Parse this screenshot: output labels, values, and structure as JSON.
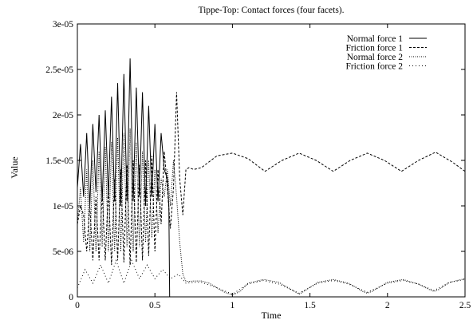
{
  "chart_data": {
    "type": "line",
    "title": "Tippe-Top: Contact forces (four facets).",
    "xlabel": "Time",
    "ylabel": "Value",
    "xlim": [
      0,
      2.5
    ],
    "ylim": [
      0,
      3e-05
    ],
    "x_ticks": [
      0,
      0.5,
      1,
      1.5,
      2,
      2.5
    ],
    "x_tick_labels": [
      "0",
      "0.5",
      "1",
      "1.5",
      "2",
      "2.5"
    ],
    "y_ticks": [
      0,
      5e-06,
      1e-05,
      1.5e-05,
      2e-05,
      2.5e-05,
      3e-05
    ],
    "y_tick_labels": [
      "0",
      "5e-06",
      "1e-05",
      "1.5e-05",
      "2e-05",
      "2.5e-05",
      "3e-05"
    ],
    "grid": false,
    "legend_position": "top-right",
    "series": [
      {
        "name": "Normal force 1",
        "style": "solid",
        "x": [
          0.0,
          0.02,
          0.04,
          0.06,
          0.08,
          0.1,
          0.12,
          0.14,
          0.16,
          0.18,
          0.2,
          0.22,
          0.24,
          0.26,
          0.28,
          0.3,
          0.32,
          0.34,
          0.36,
          0.38,
          0.4,
          0.42,
          0.44,
          0.46,
          0.48,
          0.5,
          0.52,
          0.54,
          0.56,
          0.58,
          0.59,
          0.595,
          0.6,
          2.5
        ],
        "values": [
          1.2e-05,
          1.68e-05,
          1.1e-05,
          1.8e-05,
          1e-05,
          1.9e-05,
          1.15e-05,
          2e-05,
          1.05e-05,
          2.05e-05,
          1.1e-05,
          2.2e-05,
          1.05e-05,
          2.35e-05,
          1e-05,
          2.45e-05,
          1.05e-05,
          2.62e-05,
          1.05e-05,
          2.3e-05,
          1.1e-05,
          2.25e-05,
          1e-05,
          2.1e-05,
          1.1e-05,
          1.9e-05,
          1.05e-05,
          1.8e-05,
          1.4e-05,
          1.3e-05,
          1e-05,
          0,
          0,
          0
        ]
      },
      {
        "name": "Friction force 1",
        "style": "dashed",
        "x": [
          0.0,
          0.02,
          0.04,
          0.06,
          0.08,
          0.1,
          0.12,
          0.14,
          0.16,
          0.18,
          0.2,
          0.22,
          0.24,
          0.26,
          0.28,
          0.3,
          0.32,
          0.34,
          0.36,
          0.38,
          0.4,
          0.42,
          0.44,
          0.46,
          0.48,
          0.5,
          0.52,
          0.54,
          0.56,
          0.58,
          0.6,
          0.62,
          0.64,
          0.66,
          0.68,
          0.7,
          0.72,
          0.75,
          0.8,
          0.9,
          1.0,
          1.1,
          1.21,
          1.32,
          1.43,
          1.54,
          1.65,
          1.76,
          1.87,
          1.98,
          2.09,
          2.2,
          2.31,
          2.42,
          2.5
        ],
        "values": [
          8e-06,
          1e-05,
          9e-06,
          5e-06,
          1e-05,
          4e-06,
          1.1e-05,
          4e-06,
          1.15e-05,
          4e-06,
          1.2e-05,
          3.5e-06,
          1.3e-05,
          4e-06,
          1.4e-05,
          3.8e-06,
          1.45e-05,
          3.5e-06,
          1.5e-05,
          3.8e-06,
          1.45e-05,
          4e-06,
          1.5e-05,
          4.5e-06,
          1.55e-05,
          5e-06,
          1.4e-05,
          8e-06,
          1.6e-05,
          1.2e-05,
          7.5e-06,
          1.2e-05,
          2.25e-05,
          1.3e-05,
          9e-06,
          1.4e-05,
          1.42e-05,
          1.4e-05,
          1.42e-05,
          1.55e-05,
          1.58e-05,
          1.52e-05,
          1.38e-05,
          1.5e-05,
          1.58e-05,
          1.5e-05,
          1.38e-05,
          1.5e-05,
          1.58e-05,
          1.5e-05,
          1.38e-05,
          1.5e-05,
          1.59e-05,
          1.48e-05,
          1.38e-05
        ]
      },
      {
        "name": "Normal force 2",
        "style": "dotted",
        "x": [
          0.0,
          0.02,
          0.04,
          0.06,
          0.08,
          0.1,
          0.12,
          0.14,
          0.16,
          0.18,
          0.2,
          0.22,
          0.24,
          0.26,
          0.28,
          0.3,
          0.32,
          0.34,
          0.36,
          0.38,
          0.4,
          0.42,
          0.44,
          0.46,
          0.48,
          0.5,
          0.52,
          0.54,
          0.56,
          0.58,
          0.6,
          0.62,
          0.64,
          0.66,
          0.68,
          0.7,
          0.72,
          0.75,
          0.8,
          0.85,
          0.9,
          0.95,
          1.0,
          1.05,
          1.1,
          1.2,
          1.3,
          1.4,
          1.43,
          1.46,
          1.55,
          1.65,
          1.75,
          1.84,
          1.87,
          1.9,
          2.0,
          2.1,
          2.2,
          2.27,
          2.3,
          2.33,
          2.4,
          2.5
        ],
        "values": [
          8e-06,
          1.2e-05,
          6e-06,
          1.4e-05,
          5e-06,
          1.5e-05,
          5e-06,
          1.6e-05,
          5.5e-06,
          1.65e-05,
          5e-06,
          1.7e-05,
          5e-06,
          1.75e-05,
          5e-06,
          1.8e-05,
          5.5e-06,
          1.85e-05,
          5e-06,
          1.7e-05,
          5.5e-06,
          1.6e-05,
          6e-06,
          1.5e-05,
          6.5e-06,
          1.4e-05,
          7e-06,
          1.3e-05,
          1.1e-05,
          1.4e-05,
          1e-05,
          1.5e-05,
          1.1e-05,
          6e-06,
          2.5e-06,
          1.7e-06,
          1.7e-06,
          1.75e-06,
          1.75e-06,
          1.5e-06,
          1e-06,
          5e-07,
          2e-07,
          6e-07,
          1.5e-06,
          1.9e-06,
          1.6e-06,
          6e-07,
          3e-07,
          6e-07,
          1.6e-06,
          1.9e-06,
          1.5e-06,
          6e-07,
          4e-07,
          6e-07,
          1.6e-06,
          1.9e-06,
          1.4e-06,
          8e-07,
          6e-07,
          8e-07,
          1.6e-06,
          2e-06
        ]
      },
      {
        "name": "Friction force 2",
        "style": "dotted-sparse",
        "x": [
          0.0,
          0.05,
          0.1,
          0.15,
          0.2,
          0.25,
          0.3,
          0.35,
          0.4,
          0.45,
          0.5,
          0.55,
          0.6,
          0.65,
          0.7,
          0.75,
          0.8,
          0.9,
          1.0,
          1.1,
          1.2,
          1.3,
          1.43,
          1.55,
          1.65,
          1.75,
          1.87,
          2.0,
          2.1,
          2.2,
          2.3,
          2.4,
          2.5
        ],
        "values": [
          1e-06,
          3e-06,
          1.5e-06,
          3.5e-06,
          1.5e-06,
          4e-06,
          1.5e-06,
          4e-06,
          2e-06,
          3.5e-06,
          2e-06,
          3e-06,
          2e-06,
          2.5e-06,
          1.5e-06,
          1.6e-06,
          1.6e-06,
          1e-06,
          3e-07,
          1.4e-06,
          1.8e-06,
          1.4e-06,
          4e-07,
          1.5e-06,
          1.8e-06,
          1.4e-06,
          5e-07,
          1.5e-06,
          1.8e-06,
          1.4e-06,
          7e-07,
          1.6e-06,
          1.9e-06
        ]
      }
    ]
  }
}
